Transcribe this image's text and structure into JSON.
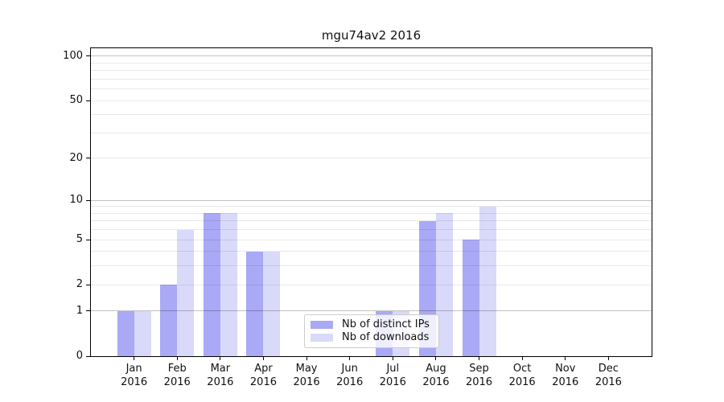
{
  "chart_data": {
    "type": "bar",
    "title": "mgu74av2 2016",
    "categories": [
      "Jan 2016",
      "Feb 2016",
      "Mar 2016",
      "Apr 2016",
      "May 2016",
      "Jun 2016",
      "Jul 2016",
      "Aug 2016",
      "Sep 2016",
      "Oct 2016",
      "Nov 2016",
      "Dec 2016"
    ],
    "series": [
      {
        "name": "Nb of distinct IPs",
        "color": "#a9a9f6",
        "values": [
          1,
          2,
          8,
          4,
          0,
          0,
          1,
          7,
          5,
          0,
          0,
          0
        ]
      },
      {
        "name": "Nb of downloads",
        "color": "#d9d9f9",
        "values": [
          1,
          6,
          8,
          4,
          0,
          0,
          1,
          8,
          9,
          0,
          0,
          0
        ]
      }
    ],
    "y_axis": {
      "scale": "log1p",
      "tick_values": [
        0,
        1,
        2,
        5,
        10,
        20,
        50,
        100
      ],
      "top_value": 113
    },
    "gridlines": {
      "values": [
        1,
        2,
        3,
        4,
        5,
        6,
        7,
        8,
        9,
        10,
        20,
        30,
        40,
        50,
        60,
        70,
        80,
        90,
        100
      ],
      "emphasis_values": [
        1,
        10,
        100
      ]
    },
    "legend_position": "lower center-left inside plot",
    "grid": "horizontal only",
    "plot_background": "#ffffff"
  }
}
